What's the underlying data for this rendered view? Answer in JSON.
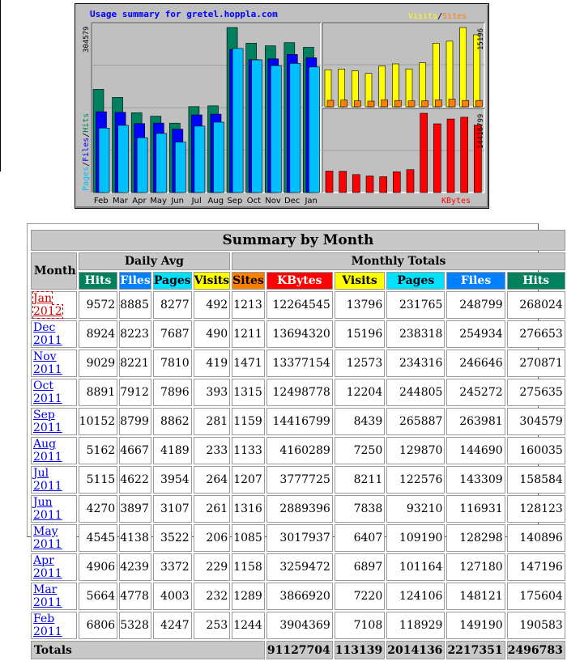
{
  "chart_data": [
    {
      "type": "bar",
      "title": "Usage summary for gretel.hoppla.com",
      "categories": [
        "Feb",
        "Mar",
        "Apr",
        "May",
        "Jun",
        "Jul",
        "Aug",
        "Sep",
        "Oct",
        "Nov",
        "Dec",
        "Jan"
      ],
      "ylabel_left": [
        "Pages",
        "/",
        "Files",
        "/",
        "Hits"
      ],
      "ymax_label": "304579",
      "series": [
        {
          "name": "Hits",
          "color": "#00805c",
          "values": [
            190583,
            175604,
            147196,
            140896,
            128123,
            158584,
            160035,
            304579,
            275635,
            270871,
            276653,
            268024
          ]
        },
        {
          "name": "Files",
          "color": "#0000ff",
          "values": [
            149190,
            148121,
            127180,
            128298,
            116931,
            143309,
            144690,
            263981,
            245272,
            246646,
            254934,
            248799
          ]
        },
        {
          "name": "Pages",
          "color": "#00c0ff",
          "values": [
            118929,
            124106,
            101164,
            109190,
            93210,
            122576,
            129870,
            265887,
            244805,
            234316,
            238318,
            231765
          ]
        }
      ]
    },
    {
      "type": "bar",
      "legend": [
        "Visits",
        "/",
        "Sites"
      ],
      "ymax_label": "15196",
      "series": [
        {
          "name": "Visits",
          "color": "#ffff00",
          "values": [
            7108,
            7220,
            6897,
            6407,
            7838,
            8211,
            7250,
            8439,
            12204,
            12573,
            15196,
            13796
          ]
        },
        {
          "name": "Sites",
          "color": "#ff8000",
          "values": [
            1244,
            1289,
            1158,
            1085,
            1316,
            1207,
            1133,
            1159,
            1315,
            1471,
            1211,
            1213
          ]
        }
      ]
    },
    {
      "type": "bar",
      "legend": "KBytes",
      "ymax_label": "14416799",
      "series": [
        {
          "name": "KBytes",
          "color": "#ff0000",
          "values": [
            3904369,
            3866920,
            3259472,
            3017937,
            2889396,
            3777725,
            4160289,
            14416799,
            12498778,
            13377154,
            13694320,
            12264545
          ]
        }
      ]
    }
  ],
  "summary": {
    "title": "Summary by Month",
    "month_label": "Month",
    "daily_avg_label": "Daily Avg",
    "monthly_totals_label": "Monthly Totals",
    "daily_cols": [
      "Hits",
      "Files",
      "Pages",
      "Visits"
    ],
    "monthly_cols": [
      "Sites",
      "KBytes",
      "Visits",
      "Pages",
      "Files",
      "Hits"
    ],
    "rows": [
      {
        "month": "Jan 2012",
        "cells": [
          "9572",
          "8885",
          "8277",
          "492",
          "1213",
          "12264545",
          "13796",
          "231765",
          "248799",
          "268024"
        ]
      },
      {
        "month": "Dec 2011",
        "cells": [
          "8924",
          "8223",
          "7687",
          "490",
          "1211",
          "13694320",
          "15196",
          "238318",
          "254934",
          "276653"
        ]
      },
      {
        "month": "Nov 2011",
        "cells": [
          "9029",
          "8221",
          "7810",
          "419",
          "1471",
          "13377154",
          "12573",
          "234316",
          "246646",
          "270871"
        ]
      },
      {
        "month": "Oct 2011",
        "cells": [
          "8891",
          "7912",
          "7896",
          "393",
          "1315",
          "12498778",
          "12204",
          "244805",
          "245272",
          "275635"
        ]
      },
      {
        "month": "Sep 2011",
        "cells": [
          "10152",
          "8799",
          "8862",
          "281",
          "1159",
          "14416799",
          "8439",
          "265887",
          "263981",
          "304579"
        ]
      },
      {
        "month": "Aug 2011",
        "cells": [
          "5162",
          "4667",
          "4189",
          "233",
          "1133",
          "4160289",
          "7250",
          "129870",
          "144690",
          "160035"
        ]
      },
      {
        "month": "Jul 2011",
        "cells": [
          "5115",
          "4622",
          "3954",
          "264",
          "1207",
          "3777725",
          "8211",
          "122576",
          "143309",
          "158584"
        ]
      },
      {
        "month": "Jun 2011",
        "cells": [
          "4270",
          "3897",
          "3107",
          "261",
          "1316",
          "2889396",
          "7838",
          "93210",
          "116931",
          "128123"
        ]
      },
      {
        "month": "May 2011",
        "cells": [
          "4545",
          "4138",
          "3522",
          "206",
          "1085",
          "3017937",
          "6407",
          "109190",
          "128298",
          "140896"
        ]
      },
      {
        "month": "Apr 2011",
        "cells": [
          "4906",
          "4239",
          "3372",
          "229",
          "1158",
          "3259472",
          "6897",
          "101164",
          "127180",
          "147196"
        ]
      },
      {
        "month": "Mar 2011",
        "cells": [
          "5664",
          "4778",
          "4003",
          "232",
          "1289",
          "3866920",
          "7220",
          "124106",
          "148121",
          "175604"
        ]
      },
      {
        "month": "Feb 2011",
        "cells": [
          "6806",
          "5328",
          "4247",
          "253",
          "1244",
          "3904369",
          "7108",
          "118929",
          "149190",
          "190583"
        ]
      }
    ],
    "totals_label": "Totals",
    "totals": [
      "91127704",
      "113139",
      "2014136",
      "2217351",
      "2496783"
    ]
  }
}
